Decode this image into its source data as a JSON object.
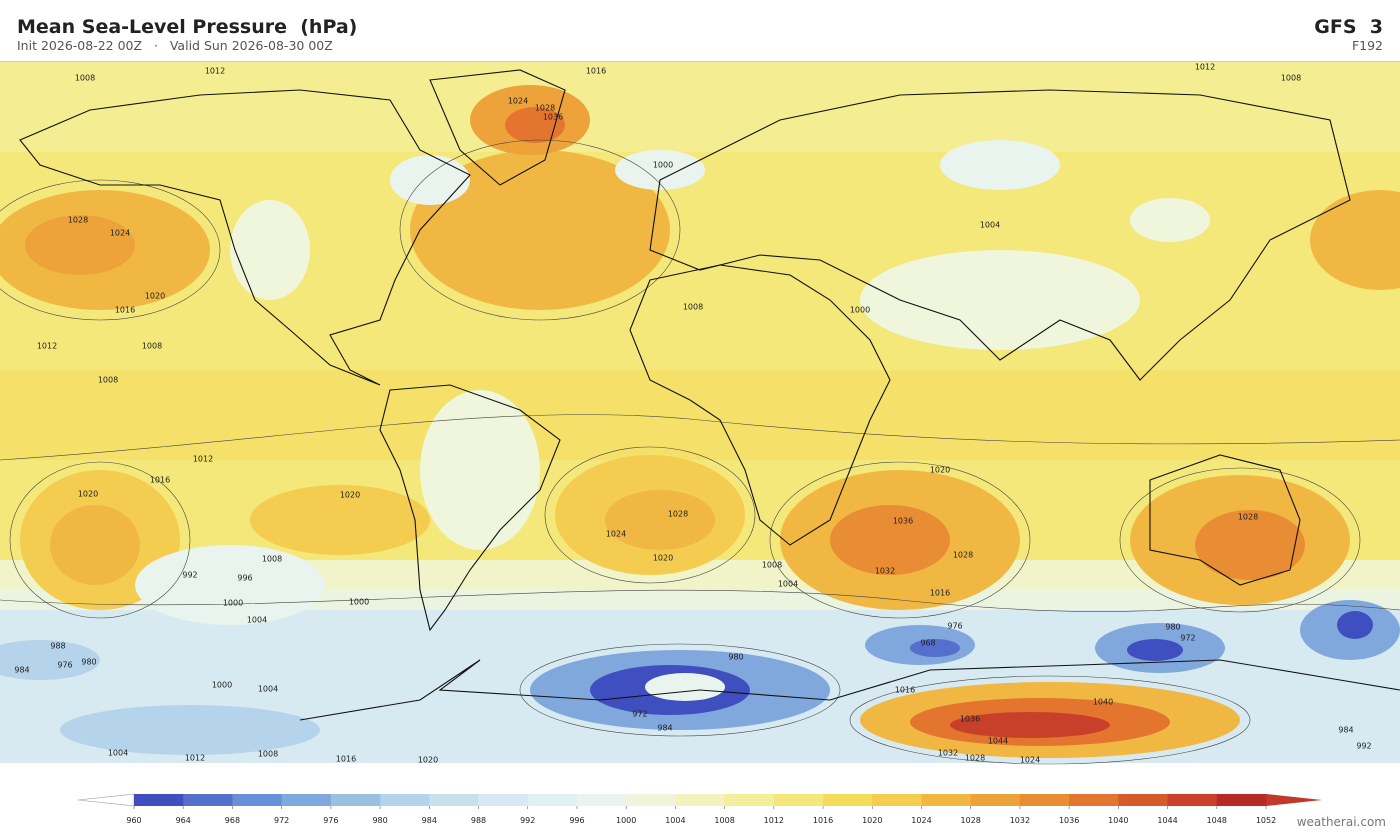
{
  "header": {
    "title": "Mean Sea-Level Pressure  (hPa)",
    "subtitle": "Init 2026-08-22 00Z   ·   Valid Sun 2026-08-30 00Z",
    "model": "GFS  3",
    "forecast_hour": "F192"
  },
  "colorbar": {
    "levels": [
      960,
      964,
      968,
      972,
      976,
      980,
      984,
      988,
      992,
      996,
      1000,
      1004,
      1008,
      1012,
      1016,
      1020,
      1024,
      1028,
      1032,
      1036,
      1040,
      1044,
      1048,
      1052
    ],
    "colors": [
      "#3f4fbf",
      "#5570cc",
      "#6b8fd6",
      "#80a8dc",
      "#9cc0e2",
      "#b5d3ea",
      "#c9e1ee",
      "#d8eaf1",
      "#e2f0f2",
      "#eaf4ee",
      "#eff6dc",
      "#f2f3c0",
      "#f4ef9c",
      "#f5e87a",
      "#f5dc5e",
      "#f3cc50",
      "#f0b843",
      "#eda33a",
      "#e98d34",
      "#e3752f",
      "#d75a2b",
      "#c9402a",
      "#b82a26"
    ],
    "under_color": "#ffffff",
    "over_color": "#c0392b"
  },
  "map": {
    "contour_labels": [
      "1012",
      "1016",
      "1012",
      "1008",
      "1008",
      "1028",
      "1036",
      "1024",
      "1028",
      "1024",
      "1020",
      "1016",
      "1012",
      "1008",
      "1008",
      "1000",
      "1004",
      "1008",
      "1000",
      "1012",
      "1016",
      "1020",
      "1020",
      "1028",
      "1024",
      "1020",
      "1036",
      "1032",
      "1028",
      "1020",
      "1028",
      "1008",
      "996",
      "992",
      "1000",
      "1004",
      "1000",
      "1008",
      "1004",
      "1016",
      "988",
      "984",
      "976",
      "980",
      "1000",
      "1004",
      "980",
      "972",
      "984",
      "968",
      "976",
      "980",
      "972",
      "1036",
      "1044",
      "1032",
      "1028",
      "1024",
      "1040",
      "1016",
      "1004",
      "1012",
      "1008",
      "1016",
      "1020",
      "992",
      "984"
    ]
  },
  "footer": {
    "credit": "weatherai.com"
  }
}
